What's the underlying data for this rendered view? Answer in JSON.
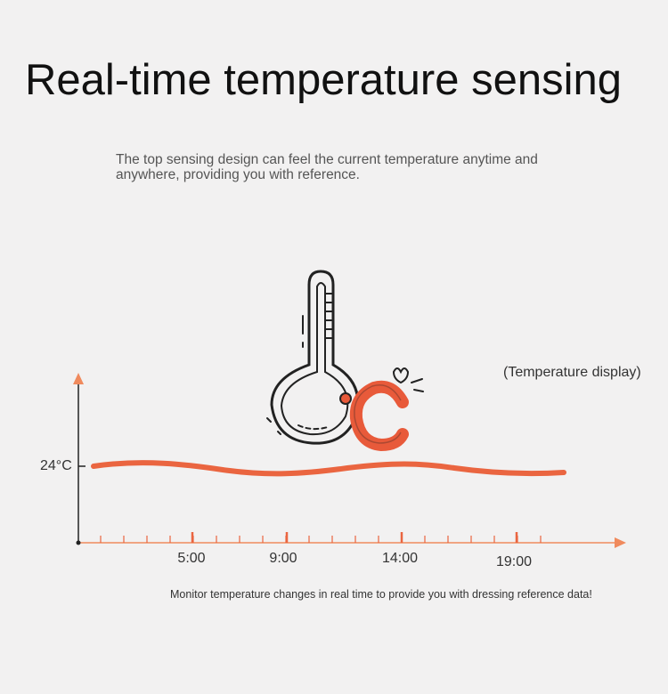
{
  "header": {
    "title": "Real-time temperature sensing",
    "description": "The top sensing design can feel the current temperature anytime and anywhere, providing you with reference."
  },
  "illustration": {
    "caption": "(Temperature display)"
  },
  "graph": {
    "y_label": "24°C",
    "x_labels": [
      "5:00",
      "9:00",
      "14:00",
      "19:00"
    ]
  },
  "footer": {
    "note": "Monitor temperature changes in real time to provide you with dressing reference data!"
  }
}
